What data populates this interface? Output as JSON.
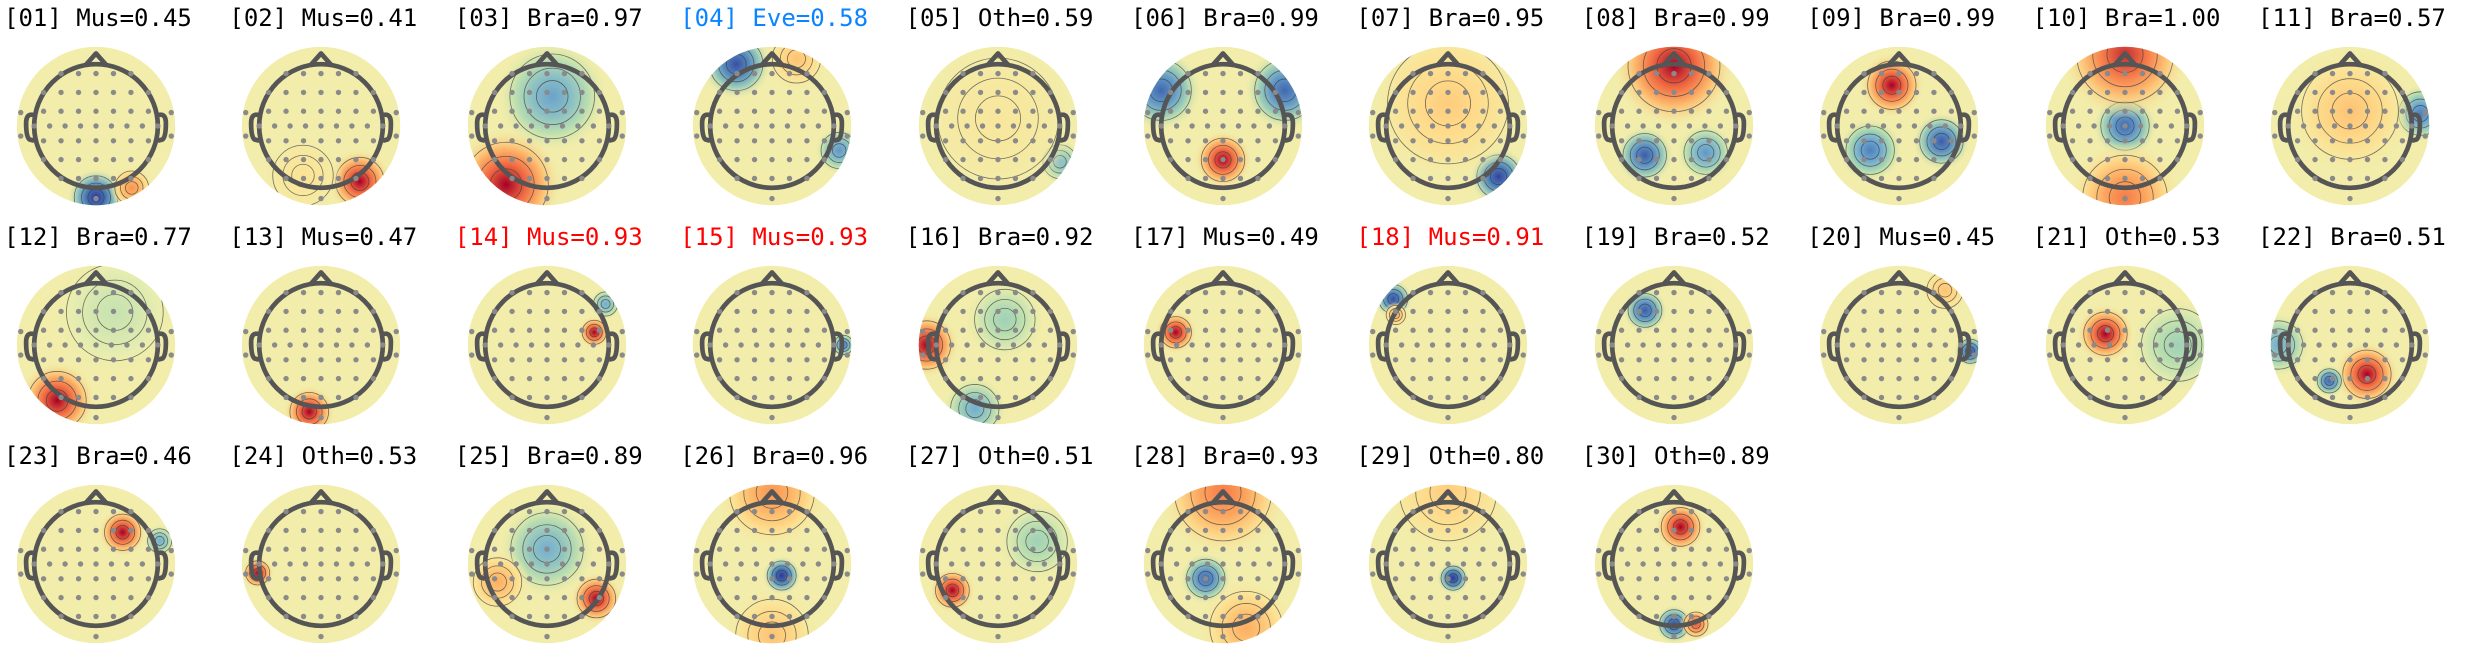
{
  "figure": {
    "description_free": true,
    "legend": {
      "colors": {
        "black": "#000000",
        "red": "#ff0000",
        "blue": "#0a84ff"
      }
    },
    "components": [
      {
        "label": "[01] Mus=0.45",
        "color": "black",
        "blobs": [
          {
            "ang": 180,
            "r": 0.95,
            "v": -1,
            "s": 0.18
          },
          {
            "ang": 150,
            "r": 0.95,
            "v": 0.6,
            "s": 0.14
          }
        ]
      },
      {
        "label": "[02] Mus=0.41",
        "color": "black",
        "blobs": [
          {
            "ang": 145,
            "r": 0.9,
            "v": 1,
            "s": 0.2
          },
          {
            "ang": 200,
            "r": 0.7,
            "v": 0.2,
            "s": 0.25
          }
        ]
      },
      {
        "label": "[03] Bra=0.97",
        "color": "black",
        "blobs": [
          {
            "ang": 10,
            "r": 0.4,
            "v": -0.55,
            "s": 0.35
          },
          {
            "ang": 215,
            "r": 0.95,
            "v": 1,
            "s": 0.35
          }
        ]
      },
      {
        "label": "[04] Eve=0.58",
        "color": "blue",
        "blobs": [
          {
            "ang": 330,
            "r": 0.95,
            "v": -0.9,
            "s": 0.22
          },
          {
            "ang": 110,
            "r": 0.95,
            "v": -0.6,
            "s": 0.15
          },
          {
            "ang": 20,
            "r": 0.95,
            "v": 0.4,
            "s": 0.2
          }
        ]
      },
      {
        "label": "[05] Oth=0.59",
        "color": "black",
        "blobs": [
          {
            "ang": 120,
            "r": 0.95,
            "v": -0.45,
            "s": 0.14
          },
          {
            "ang": 0,
            "r": 0.1,
            "v": 0.15,
            "s": 0.5
          }
        ]
      },
      {
        "label": "[06] Bra=0.99",
        "color": "black",
        "blobs": [
          {
            "ang": 180,
            "r": 0.45,
            "v": 1,
            "s": 0.18
          },
          {
            "ang": 300,
            "r": 0.95,
            "v": -0.8,
            "s": 0.25
          },
          {
            "ang": 60,
            "r": 0.95,
            "v": -0.8,
            "s": 0.25
          }
        ]
      },
      {
        "label": "[07] Bra=0.95",
        "color": "black",
        "blobs": [
          {
            "ang": 135,
            "r": 0.95,
            "v": -0.95,
            "s": 0.18
          },
          {
            "ang": 0,
            "r": 0.3,
            "v": 0.35,
            "s": 0.5
          }
        ]
      },
      {
        "label": "[08] Bra=0.99",
        "color": "black",
        "blobs": [
          {
            "ang": 0,
            "r": 0.8,
            "v": 1,
            "s": 0.38
          },
          {
            "ang": 225,
            "r": 0.55,
            "v": -0.85,
            "s": 0.18
          },
          {
            "ang": 130,
            "r": 0.55,
            "v": -0.6,
            "s": 0.18
          }
        ]
      },
      {
        "label": "[09] Bra=0.99",
        "color": "black",
        "blobs": [
          {
            "ang": 350,
            "r": 0.55,
            "v": 1,
            "s": 0.2
          },
          {
            "ang": 230,
            "r": 0.5,
            "v": -0.7,
            "s": 0.2
          },
          {
            "ang": 110,
            "r": 0.6,
            "v": -0.85,
            "s": 0.18
          }
        ]
      },
      {
        "label": "[10] Bra=1.00",
        "color": "black",
        "blobs": [
          {
            "ang": 0,
            "r": 0.0,
            "v": -0.8,
            "s": 0.2
          },
          {
            "ang": 0,
            "r": 0.95,
            "v": 0.9,
            "s": 0.4
          },
          {
            "ang": 180,
            "r": 0.95,
            "v": 0.7,
            "s": 0.35
          }
        ]
      },
      {
        "label": "[11] Bra=0.57",
        "color": "black",
        "blobs": [
          {
            "ang": 80,
            "r": 0.95,
            "v": -0.7,
            "s": 0.18
          },
          {
            "ang": 0,
            "r": 0.2,
            "v": 0.4,
            "s": 0.4
          }
        ]
      },
      {
        "label": "[12] Bra=0.77",
        "color": "black",
        "blobs": [
          {
            "ang": 215,
            "r": 0.9,
            "v": 1,
            "s": 0.24
          },
          {
            "ang": 30,
            "r": 0.5,
            "v": -0.15,
            "s": 0.4
          }
        ]
      },
      {
        "label": "[13] Mus=0.47",
        "color": "black",
        "blobs": [
          {
            "ang": 190,
            "r": 0.9,
            "v": 1,
            "s": 0.16
          }
        ]
      },
      {
        "label": "[14] Mus=0.93",
        "color": "red",
        "blobs": [
          {
            "ang": 75,
            "r": 0.65,
            "v": 1,
            "s": 0.1
          },
          {
            "ang": 55,
            "r": 0.95,
            "v": -0.5,
            "s": 0.1
          }
        ]
      },
      {
        "label": "[15] Mus=0.93",
        "color": "red",
        "blobs": [
          {
            "ang": 90,
            "r": 0.95,
            "v": -0.7,
            "s": 0.08
          }
        ]
      },
      {
        "label": "[16] Bra=0.92",
        "color": "black",
        "blobs": [
          {
            "ang": 270,
            "r": 0.95,
            "v": 1,
            "s": 0.2
          },
          {
            "ang": 15,
            "r": 0.35,
            "v": -0.3,
            "s": 0.25
          },
          {
            "ang": 200,
            "r": 0.9,
            "v": -0.5,
            "s": 0.2
          }
        ]
      },
      {
        "label": "[17] Mus=0.49",
        "color": "black",
        "blobs": [
          {
            "ang": 285,
            "r": 0.65,
            "v": 1,
            "s": 0.13
          }
        ]
      },
      {
        "label": "[18] Mus=0.91",
        "color": "red",
        "blobs": [
          {
            "ang": 310,
            "r": 0.95,
            "v": -0.9,
            "s": 0.12
          },
          {
            "ang": 300,
            "r": 0.8,
            "v": 0.5,
            "s": 0.08
          }
        ]
      },
      {
        "label": "[19] Bra=0.52",
        "color": "black",
        "blobs": [
          {
            "ang": 320,
            "r": 0.6,
            "v": -0.85,
            "s": 0.14
          }
        ]
      },
      {
        "label": "[20] Mus=0.45",
        "color": "black",
        "blobs": [
          {
            "ang": 95,
            "r": 0.95,
            "v": -0.9,
            "s": 0.1
          },
          {
            "ang": 40,
            "r": 0.95,
            "v": 0.4,
            "s": 0.15
          }
        ]
      },
      {
        "label": "[21] Oth=0.53",
        "color": "black",
        "blobs": [
          {
            "ang": 300,
            "r": 0.3,
            "v": 1,
            "s": 0.18
          },
          {
            "ang": 90,
            "r": 0.7,
            "v": -0.3,
            "s": 0.3
          }
        ]
      },
      {
        "label": "[22] Bra=0.51",
        "color": "black",
        "blobs": [
          {
            "ang": 150,
            "r": 0.45,
            "v": 1,
            "s": 0.2
          },
          {
            "ang": 210,
            "r": 0.55,
            "v": -0.8,
            "s": 0.1
          },
          {
            "ang": 270,
            "r": 0.95,
            "v": -0.5,
            "s": 0.2
          }
        ]
      },
      {
        "label": "[23] Bra=0.46",
        "color": "black",
        "blobs": [
          {
            "ang": 40,
            "r": 0.55,
            "v": 1,
            "s": 0.15
          },
          {
            "ang": 70,
            "r": 0.9,
            "v": -0.5,
            "s": 0.1
          }
        ]
      },
      {
        "label": "[24] Oth=0.53",
        "color": "black",
        "blobs": [
          {
            "ang": 262,
            "r": 0.85,
            "v": 1,
            "s": 0.1
          }
        ]
      },
      {
        "label": "[25] Bra=0.89",
        "color": "black",
        "blobs": [
          {
            "ang": 0,
            "r": 0.2,
            "v": -0.5,
            "s": 0.3
          },
          {
            "ang": 125,
            "r": 0.8,
            "v": 1,
            "s": 0.16
          },
          {
            "ang": 250,
            "r": 0.7,
            "v": 0.5,
            "s": 0.2
          }
        ]
      },
      {
        "label": "[26] Bra=0.96",
        "color": "black",
        "blobs": [
          {
            "ang": 140,
            "r": 0.2,
            "v": -1,
            "s": 0.12
          },
          {
            "ang": 0,
            "r": 0.95,
            "v": 0.6,
            "s": 0.35
          },
          {
            "ang": 180,
            "r": 0.95,
            "v": 0.4,
            "s": 0.3
          }
        ]
      },
      {
        "label": "[27] Oth=0.51",
        "color": "black",
        "blobs": [
          {
            "ang": 240,
            "r": 0.7,
            "v": 1,
            "s": 0.14
          },
          {
            "ang": 60,
            "r": 0.6,
            "v": -0.3,
            "s": 0.25
          }
        ]
      },
      {
        "label": "[28] Bra=0.93",
        "color": "black",
        "blobs": [
          {
            "ang": 230,
            "r": 0.3,
            "v": -0.8,
            "s": 0.16
          },
          {
            "ang": 0,
            "r": 0.95,
            "v": 0.7,
            "s": 0.4
          },
          {
            "ang": 160,
            "r": 0.9,
            "v": 0.5,
            "s": 0.3
          }
        ]
      },
      {
        "label": "[29] Oth=0.80",
        "color": "black",
        "blobs": [
          {
            "ang": 160,
            "r": 0.2,
            "v": -1,
            "s": 0.1
          },
          {
            "ang": 0,
            "r": 0.95,
            "v": 0.35,
            "s": 0.4
          }
        ]
      },
      {
        "label": "[30] Oth=0.89",
        "color": "black",
        "blobs": [
          {
            "ang": 10,
            "r": 0.5,
            "v": 1,
            "s": 0.16
          },
          {
            "ang": 180,
            "r": 0.8,
            "v": -0.9,
            "s": 0.12
          },
          {
            "ang": 160,
            "r": 0.85,
            "v": 0.8,
            "s": 0.1
          }
        ]
      }
    ]
  }
}
